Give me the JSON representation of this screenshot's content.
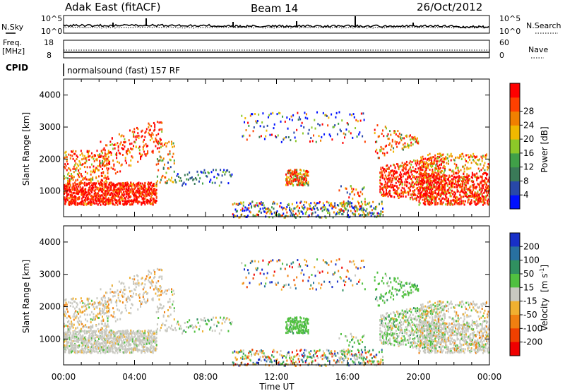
{
  "header": {
    "station": "Adak East (fitACF)",
    "beam": "Beam 14",
    "date": "26/Oct/2012"
  },
  "noise_panel": {
    "left_label": "N.Sky",
    "right_label": "N.Search",
    "left_ticks": [
      "10^5",
      "10^0"
    ],
    "right_ticks": [
      "10^5",
      "10^0"
    ]
  },
  "freq_panel": {
    "left_label_1": "Freq.",
    "left_label_2": "[MHz]",
    "right_label": "Nave",
    "left_ticks": [
      "18",
      "8"
    ],
    "right_ticks": [
      "60",
      "0"
    ]
  },
  "cpid_panel": {
    "label": "CPID",
    "text": "normalsound (fast) 157 RF"
  },
  "chart_data": [
    {
      "type": "heatmap",
      "name_label": "Power",
      "ylabel": "Slant Range [km]",
      "xlabel": "",
      "y_ticks": [
        1000,
        2000,
        3000,
        4000
      ],
      "ylim": [
        200,
        4500
      ],
      "x_ticks": [
        "00:00",
        "04:00",
        "08:00",
        "12:00",
        "16:00",
        "20:00",
        "00:00"
      ],
      "xlim_hours": [
        0,
        24
      ],
      "colorbar": {
        "label": "Power [dB]",
        "ticks": [
          "4",
          "8",
          "12",
          "16",
          "20",
          "24",
          "28"
        ],
        "colors": [
          "#0010ff",
          "#2848a8",
          "#3a7a58",
          "#40a048",
          "#8cc828",
          "#f0b800",
          "#f08000",
          "#ff4000",
          "#ff0000"
        ]
      }
    },
    {
      "type": "heatmap",
      "name_label": "Velocity",
      "ylabel": "Slant Range [km]",
      "xlabel": "Time UT",
      "y_ticks": [
        1000,
        2000,
        3000,
        4000
      ],
      "ylim": [
        200,
        4500
      ],
      "x_ticks": [
        "00:00",
        "04:00",
        "08:00",
        "12:00",
        "16:00",
        "20:00",
        "00:00"
      ],
      "xlim_hours": [
        0,
        24
      ],
      "colorbar": {
        "label_main": "Velocity",
        "label_unit": "[m s",
        "label_sup": "-1",
        "label_end": "]",
        "ticks": [
          "200",
          "100",
          "50",
          "15",
          "-15",
          "-50",
          "-100",
          "-200"
        ],
        "colors": [
          "#1830c8",
          "#2870a0",
          "#309060",
          "#50c040",
          "#c8c8c0",
          "#f0b030",
          "#f08010",
          "#f04000",
          "#f00000"
        ]
      }
    }
  ]
}
